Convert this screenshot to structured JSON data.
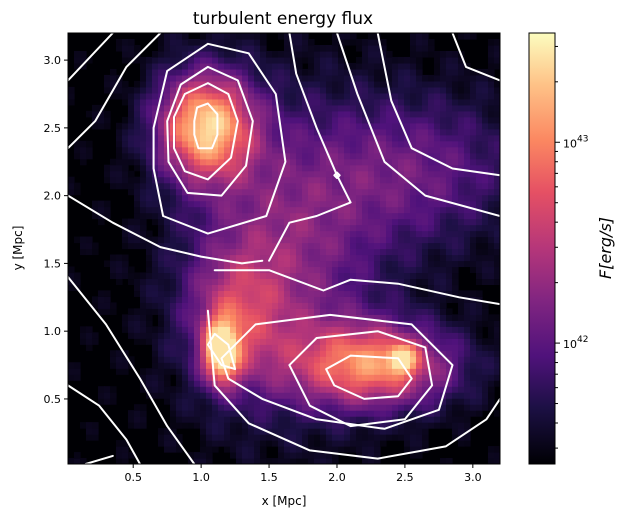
{
  "chart_data": {
    "type": "heatmap",
    "title": "turbulent energy flux",
    "xlabel": "x [Mpc]",
    "ylabel": "y [Mpc]",
    "xlim": [
      0.02,
      3.2
    ],
    "ylim": [
      0.02,
      3.2
    ],
    "x_ticks": [
      "0.5",
      "1.0",
      "1.5",
      "2.0",
      "2.5",
      "3.0"
    ],
    "y_ticks": [
      "0.5",
      "1.0",
      "1.5",
      "2.0",
      "2.5",
      "3.0"
    ],
    "grid": false,
    "colormap": "magma",
    "colorbar": {
      "label": "F[erg/s]",
      "scale": "log",
      "range": [
        2.5e+41,
        3.5e+43
      ],
      "ticks": [
        {
          "value": 1e+42,
          "label_base": "10",
          "label_exp": "42"
        },
        {
          "value": 1e+43,
          "label_base": "10",
          "label_exp": "43"
        }
      ]
    },
    "blobs": [
      {
        "cx": 1.03,
        "cy": 2.52,
        "sx": 0.25,
        "sy": 0.28,
        "amp": 1.0
      },
      {
        "cx": 2.28,
        "cy": 0.75,
        "sx": 0.42,
        "sy": 0.22,
        "amp": 0.82
      },
      {
        "cx": 1.15,
        "cy": 0.85,
        "sx": 0.09,
        "sy": 0.16,
        "amp": 0.95
      },
      {
        "cx": 2.48,
        "cy": 0.8,
        "sx": 0.07,
        "sy": 0.07,
        "amp": 0.55
      },
      {
        "cx": 1.6,
        "cy": 1.55,
        "sx": 0.5,
        "sy": 0.75,
        "amp": 0.45
      },
      {
        "cx": 2.6,
        "cy": 2.2,
        "sx": 0.55,
        "sy": 0.4,
        "amp": 0.35
      },
      {
        "cx": 1.25,
        "cy": 1.1,
        "sx": 0.25,
        "sy": 0.35,
        "amp": 0.4
      }
    ],
    "contours": [
      {
        "level": 1,
        "points": [
          [
            0.02,
            2.85
          ],
          [
            0.35,
            3.2
          ]
        ]
      },
      {
        "level": 1,
        "points": [
          [
            0.02,
            2.35
          ],
          [
            0.22,
            2.55
          ],
          [
            0.45,
            2.95
          ],
          [
            0.7,
            3.2
          ]
        ]
      },
      {
        "level": 2,
        "points": [
          [
            0.75,
            2.55
          ],
          [
            0.85,
            2.82
          ],
          [
            1.05,
            2.95
          ],
          [
            1.27,
            2.85
          ],
          [
            1.38,
            2.55
          ],
          [
            1.33,
            2.22
          ],
          [
            1.15,
            2.0
          ],
          [
            0.9,
            2.02
          ],
          [
            0.76,
            2.25
          ],
          [
            0.75,
            2.55
          ]
        ]
      },
      {
        "level": 2,
        "points": [
          [
            0.8,
            2.58
          ],
          [
            0.88,
            2.75
          ],
          [
            1.05,
            2.83
          ],
          [
            1.2,
            2.75
          ],
          [
            1.27,
            2.55
          ],
          [
            1.22,
            2.28
          ],
          [
            1.05,
            2.12
          ],
          [
            0.88,
            2.18
          ],
          [
            0.8,
            2.35
          ],
          [
            0.8,
            2.58
          ]
        ]
      },
      {
        "level": 3,
        "points": [
          [
            0.95,
            2.55
          ],
          [
            0.97,
            2.65
          ],
          [
            1.05,
            2.68
          ],
          [
            1.12,
            2.6
          ],
          [
            1.12,
            2.45
          ],
          [
            1.08,
            2.35
          ],
          [
            0.98,
            2.35
          ],
          [
            0.95,
            2.45
          ],
          [
            0.95,
            2.55
          ]
        ]
      },
      {
        "level": 1,
        "points": [
          [
            0.65,
            2.5
          ],
          [
            0.75,
            2.92
          ],
          [
            1.05,
            3.12
          ],
          [
            1.35,
            3.05
          ],
          [
            1.55,
            2.75
          ],
          [
            1.62,
            2.25
          ],
          [
            1.48,
            1.85
          ],
          [
            1.05,
            1.72
          ],
          [
            0.72,
            1.85
          ],
          [
            0.65,
            2.2
          ],
          [
            0.65,
            2.5
          ]
        ]
      },
      {
        "level": 1,
        "points": [
          [
            0.02,
            2.0
          ],
          [
            0.35,
            1.8
          ],
          [
            0.7,
            1.62
          ],
          [
            1.0,
            1.55
          ],
          [
            1.3,
            1.5
          ],
          [
            1.45,
            1.52
          ]
        ]
      },
      {
        "level": 1,
        "points": [
          [
            1.65,
            3.2
          ],
          [
            1.7,
            2.9
          ],
          [
            1.85,
            2.5
          ],
          [
            2.0,
            2.15
          ],
          [
            2.1,
            1.95
          ],
          [
            1.85,
            1.85
          ],
          [
            1.65,
            1.8
          ],
          [
            1.5,
            1.52
          ]
        ]
      },
      {
        "level": 1,
        "points": [
          [
            2.3,
            3.2
          ],
          [
            2.4,
            2.7
          ],
          [
            2.55,
            2.35
          ],
          [
            2.85,
            2.2
          ],
          [
            3.2,
            2.15
          ]
        ]
      },
      {
        "level": 1,
        "points": [
          [
            2.0,
            3.2
          ],
          [
            2.15,
            2.75
          ],
          [
            2.35,
            2.25
          ],
          [
            2.65,
            2.0
          ],
          [
            3.2,
            1.85
          ]
        ]
      },
      {
        "level": 1,
        "points": [
          [
            2.85,
            3.2
          ],
          [
            2.95,
            2.95
          ],
          [
            3.2,
            2.85
          ]
        ]
      },
      {
        "level": 1,
        "points": [
          [
            0.02,
            1.4
          ],
          [
            0.3,
            1.05
          ],
          [
            0.55,
            0.65
          ],
          [
            0.75,
            0.3
          ],
          [
            0.95,
            0.02
          ]
        ]
      },
      {
        "level": 1,
        "points": [
          [
            0.02,
            0.6
          ],
          [
            0.25,
            0.45
          ],
          [
            0.45,
            0.2
          ],
          [
            0.55,
            0.02
          ]
        ]
      },
      {
        "level": 1,
        "points": [
          [
            0.15,
            0.02
          ],
          [
            0.35,
            0.08
          ]
        ]
      },
      {
        "level": 1,
        "points": [
          [
            1.1,
            1.45
          ],
          [
            1.5,
            1.45
          ],
          [
            1.9,
            1.3
          ],
          [
            2.1,
            1.38
          ],
          [
            2.45,
            1.35
          ],
          [
            2.9,
            1.25
          ],
          [
            3.2,
            1.2
          ]
        ]
      },
      {
        "level": 1,
        "points": [
          [
            1.05,
            1.15
          ],
          [
            1.1,
            0.6
          ],
          [
            1.35,
            0.32
          ],
          [
            1.8,
            0.12
          ],
          [
            2.3,
            0.06
          ],
          [
            2.8,
            0.15
          ],
          [
            3.1,
            0.35
          ],
          [
            3.2,
            0.5
          ]
        ]
      },
      {
        "level": 2,
        "points": [
          [
            1.15,
            0.8
          ],
          [
            1.4,
            1.05
          ],
          [
            1.95,
            1.12
          ],
          [
            2.55,
            1.05
          ],
          [
            2.85,
            0.75
          ],
          [
            2.75,
            0.42
          ],
          [
            2.35,
            0.28
          ],
          [
            1.85,
            0.35
          ],
          [
            1.45,
            0.5
          ],
          [
            1.2,
            0.65
          ],
          [
            1.15,
            0.8
          ]
        ]
      },
      {
        "level": 2,
        "points": [
          [
            1.65,
            0.75
          ],
          [
            1.85,
            0.95
          ],
          [
            2.3,
            1.0
          ],
          [
            2.65,
            0.88
          ],
          [
            2.7,
            0.6
          ],
          [
            2.5,
            0.35
          ],
          [
            2.1,
            0.3
          ],
          [
            1.8,
            0.45
          ],
          [
            1.65,
            0.75
          ]
        ]
      },
      {
        "level": 3,
        "points": [
          [
            1.92,
            0.72
          ],
          [
            2.1,
            0.82
          ],
          [
            2.45,
            0.8
          ],
          [
            2.55,
            0.65
          ],
          [
            2.45,
            0.52
          ],
          [
            2.2,
            0.5
          ],
          [
            1.98,
            0.6
          ],
          [
            1.92,
            0.72
          ]
        ]
      },
      {
        "level": 3,
        "points": [
          [
            1.05,
            0.9
          ],
          [
            1.15,
            0.75
          ],
          [
            1.25,
            0.72
          ],
          [
            1.2,
            0.9
          ],
          [
            1.1,
            0.98
          ],
          [
            1.05,
            0.9
          ]
        ]
      },
      {
        "level": 4,
        "points": [
          [
            1.98,
            2.15
          ],
          [
            2.0,
            2.17
          ],
          [
            2.02,
            2.15
          ],
          [
            2.0,
            2.13
          ],
          [
            1.98,
            2.15
          ]
        ]
      }
    ]
  }
}
